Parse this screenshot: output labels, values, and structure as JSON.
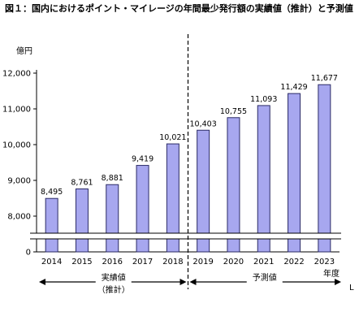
{
  "title": "図１：国内におけるポイント・マイレージの年間最少発行額の実績値（推計）と予測値",
  "unit_label": "億円",
  "x_unit_label": "年度",
  "period_actual_label": "実績値",
  "period_actual_sublabel": "（推計）",
  "period_forecast_label": "予測値",
  "edge_mark": "L",
  "colors": {
    "bar_fill": "#a7a7ef",
    "bar_stroke": "#2b2b66"
  },
  "chart_data": {
    "type": "bar",
    "title": "図１：国内におけるポイント・マイレージの年間最少発行額の実績値（推計）と予測値",
    "ylabel": "億円",
    "xlabel": "年度",
    "categories": [
      "2014",
      "2015",
      "2016",
      "2017",
      "2018",
      "2019",
      "2020",
      "2021",
      "2022",
      "2023"
    ],
    "values": [
      8495,
      8761,
      8881,
      9419,
      10021,
      10403,
      10755,
      11093,
      11429,
      11677
    ],
    "value_labels": [
      "8,495",
      "8,761",
      "8,881",
      "9,419",
      "10,021",
      "10,403",
      "10,755",
      "11,093",
      "11,429",
      "11,677"
    ],
    "ylim": [
      7500,
      12000
    ],
    "y_ticks": [
      8000,
      9000,
      10000,
      11000,
      12000
    ],
    "y_tick_labels": [
      "8,000",
      "9,000",
      "10,000",
      "11,000",
      "12,000"
    ],
    "y_baseline_label": "0",
    "axis_break": true,
    "grid": false,
    "actual_range": [
      "2014",
      "2018"
    ],
    "forecast_range": [
      "2019",
      "2023"
    ]
  }
}
